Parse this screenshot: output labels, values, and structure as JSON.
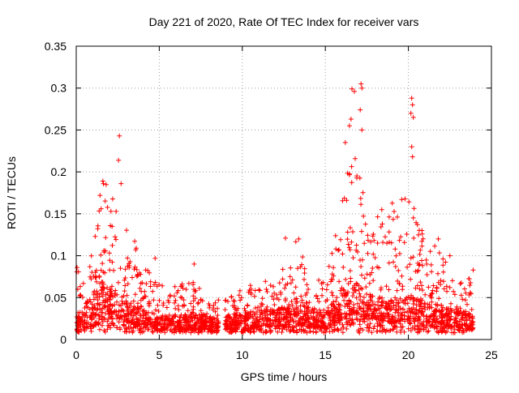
{
  "chart_data": {
    "type": "scatter",
    "title": "Day 221 of 2020, Rate Of TEC Index for receiver vars",
    "xlabel": "GPS time / hours",
    "ylabel": "ROTI / TECUs",
    "xlim": [
      0,
      25
    ],
    "ylim": [
      0,
      0.35
    ],
    "xticks": [
      0,
      5,
      10,
      15,
      20,
      25
    ],
    "xtick_labels": [
      "0",
      "5",
      "10",
      "15",
      "20",
      "25"
    ],
    "yticks": [
      0,
      0.05,
      0.1,
      0.15,
      0.2,
      0.25,
      0.3,
      0.35
    ],
    "ytick_labels": [
      "0",
      "0.05",
      "0.1",
      "0.15",
      "0.2",
      "0.25",
      "0.3",
      "0.35"
    ],
    "grid": true,
    "marker": "+",
    "series_color": "#ff0000",
    "envelope": [
      {
        "x": 0.0,
        "base": 0.02,
        "peak": 0.085
      },
      {
        "x": 0.5,
        "base": 0.03,
        "peak": 0.07
      },
      {
        "x": 1.0,
        "base": 0.04,
        "peak": 0.12
      },
      {
        "x": 1.5,
        "base": 0.06,
        "peak": 0.19
      },
      {
        "x": 2.0,
        "base": 0.05,
        "peak": 0.18
      },
      {
        "x": 2.5,
        "base": 0.045,
        "peak": 0.19
      },
      {
        "x": 3.0,
        "base": 0.035,
        "peak": 0.14
      },
      {
        "x": 3.5,
        "base": 0.03,
        "peak": 0.13
      },
      {
        "x": 4.0,
        "base": 0.025,
        "peak": 0.09
      },
      {
        "x": 5.0,
        "base": 0.02,
        "peak": 0.07
      },
      {
        "x": 6.0,
        "base": 0.02,
        "peak": 0.065
      },
      {
        "x": 7.0,
        "base": 0.02,
        "peak": 0.07
      },
      {
        "x": 8.0,
        "base": 0.02,
        "peak": 0.06
      },
      {
        "x": 8.5,
        "base": 0.015,
        "peak": 0.05
      },
      {
        "x": 9.0,
        "base": 0.02,
        "peak": 0.05
      },
      {
        "x": 10.0,
        "base": 0.02,
        "peak": 0.06
      },
      {
        "x": 11.0,
        "base": 0.025,
        "peak": 0.07
      },
      {
        "x": 12.0,
        "base": 0.025,
        "peak": 0.075
      },
      {
        "x": 12.8,
        "base": 0.03,
        "peak": 0.12
      },
      {
        "x": 13.5,
        "base": 0.03,
        "peak": 0.12
      },
      {
        "x": 14.0,
        "base": 0.025,
        "peak": 0.07
      },
      {
        "x": 15.0,
        "base": 0.025,
        "peak": 0.08
      },
      {
        "x": 16.0,
        "base": 0.04,
        "peak": 0.16
      },
      {
        "x": 16.5,
        "base": 0.05,
        "peak": 0.24
      },
      {
        "x": 17.0,
        "base": 0.05,
        "peak": 0.2
      },
      {
        "x": 17.5,
        "base": 0.045,
        "peak": 0.16
      },
      {
        "x": 18.0,
        "base": 0.04,
        "peak": 0.15
      },
      {
        "x": 19.0,
        "base": 0.035,
        "peak": 0.17
      },
      {
        "x": 20.0,
        "base": 0.04,
        "peak": 0.17
      },
      {
        "x": 20.3,
        "base": 0.04,
        "peak": 0.16
      },
      {
        "x": 21.0,
        "base": 0.035,
        "peak": 0.12
      },
      {
        "x": 21.5,
        "base": 0.035,
        "peak": 0.13
      },
      {
        "x": 22.0,
        "base": 0.03,
        "peak": 0.1
      },
      {
        "x": 23.0,
        "base": 0.025,
        "peak": 0.07
      },
      {
        "x": 24.0,
        "base": 0.02,
        "peak": 0.08
      }
    ],
    "outliers": [
      {
        "x": 2.6,
        "y": 0.243
      },
      {
        "x": 2.55,
        "y": 0.214
      },
      {
        "x": 2.7,
        "y": 0.186
      },
      {
        "x": 1.6,
        "y": 0.189
      },
      {
        "x": 1.8,
        "y": 0.185
      },
      {
        "x": 0.05,
        "y": 0.086
      },
      {
        "x": 4.75,
        "y": 0.097
      },
      {
        "x": 7.1,
        "y": 0.09
      },
      {
        "x": 12.6,
        "y": 0.121
      },
      {
        "x": 13.4,
        "y": 0.12
      },
      {
        "x": 16.55,
        "y": 0.263
      },
      {
        "x": 16.45,
        "y": 0.255
      },
      {
        "x": 16.2,
        "y": 0.235
      },
      {
        "x": 16.75,
        "y": 0.296
      },
      {
        "x": 16.6,
        "y": 0.299
      },
      {
        "x": 17.15,
        "y": 0.305
      },
      {
        "x": 17.2,
        "y": 0.3
      },
      {
        "x": 17.1,
        "y": 0.274
      },
      {
        "x": 17.2,
        "y": 0.25
      },
      {
        "x": 20.2,
        "y": 0.288
      },
      {
        "x": 20.25,
        "y": 0.28
      },
      {
        "x": 20.15,
        "y": 0.27
      },
      {
        "x": 20.3,
        "y": 0.265
      },
      {
        "x": 20.2,
        "y": 0.23
      },
      {
        "x": 20.25,
        "y": 0.218
      },
      {
        "x": 19.6,
        "y": 0.167
      },
      {
        "x": 18.4,
        "y": 0.155
      },
      {
        "x": 21.8,
        "y": 0.12
      },
      {
        "x": 22.5,
        "y": 0.1
      },
      {
        "x": 23.9,
        "y": 0.083
      }
    ],
    "gaps": [
      [
        8.6,
        8.95
      ],
      [
        23.95,
        25.0
      ]
    ]
  }
}
